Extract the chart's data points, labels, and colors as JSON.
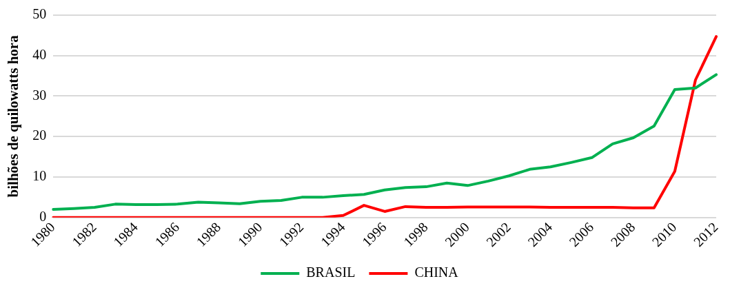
{
  "chart_data": {
    "type": "line",
    "ylabel": "bilhões de quilowatts hora",
    "categories": [
      "1980",
      null,
      "1982",
      null,
      "1984",
      null,
      "1986",
      null,
      "1988",
      null,
      "1990",
      null,
      "1992",
      null,
      "1994",
      null,
      "1996",
      null,
      "1998",
      null,
      "2000",
      null,
      "2002",
      null,
      "2004",
      null,
      "2006",
      null,
      "2008",
      null,
      "2010",
      null,
      "2012"
    ],
    "series": [
      {
        "name": "BRASIL",
        "color": "#00b050",
        "values": [
          2.0,
          2.2,
          2.5,
          3.3,
          3.2,
          3.2,
          3.3,
          3.8,
          3.6,
          3.4,
          4.0,
          4.2,
          5.0,
          5.0,
          5.4,
          5.7,
          6.8,
          7.4,
          7.6,
          8.5,
          7.9,
          9.0,
          10.3,
          11.9,
          12.5,
          13.6,
          14.8,
          18.2,
          19.7,
          22.6,
          31.6,
          32.0,
          35.3
        ]
      },
      {
        "name": "CHINA",
        "color": "#ff0000",
        "values": [
          0,
          0,
          0,
          0,
          0,
          0,
          0,
          0,
          0,
          0,
          0,
          0,
          0,
          0,
          0.5,
          3.0,
          1.5,
          2.7,
          2.5,
          2.5,
          2.6,
          2.6,
          2.6,
          2.6,
          2.5,
          2.5,
          2.5,
          2.5,
          2.4,
          2.4,
          11.4,
          34.0,
          44.7
        ]
      }
    ],
    "ylim": [
      0,
      50
    ],
    "yticks": [
      0,
      10,
      20,
      30,
      40,
      50
    ],
    "grid": "y",
    "legend": "bottom",
    "marker": "none",
    "line_style": "solid"
  }
}
